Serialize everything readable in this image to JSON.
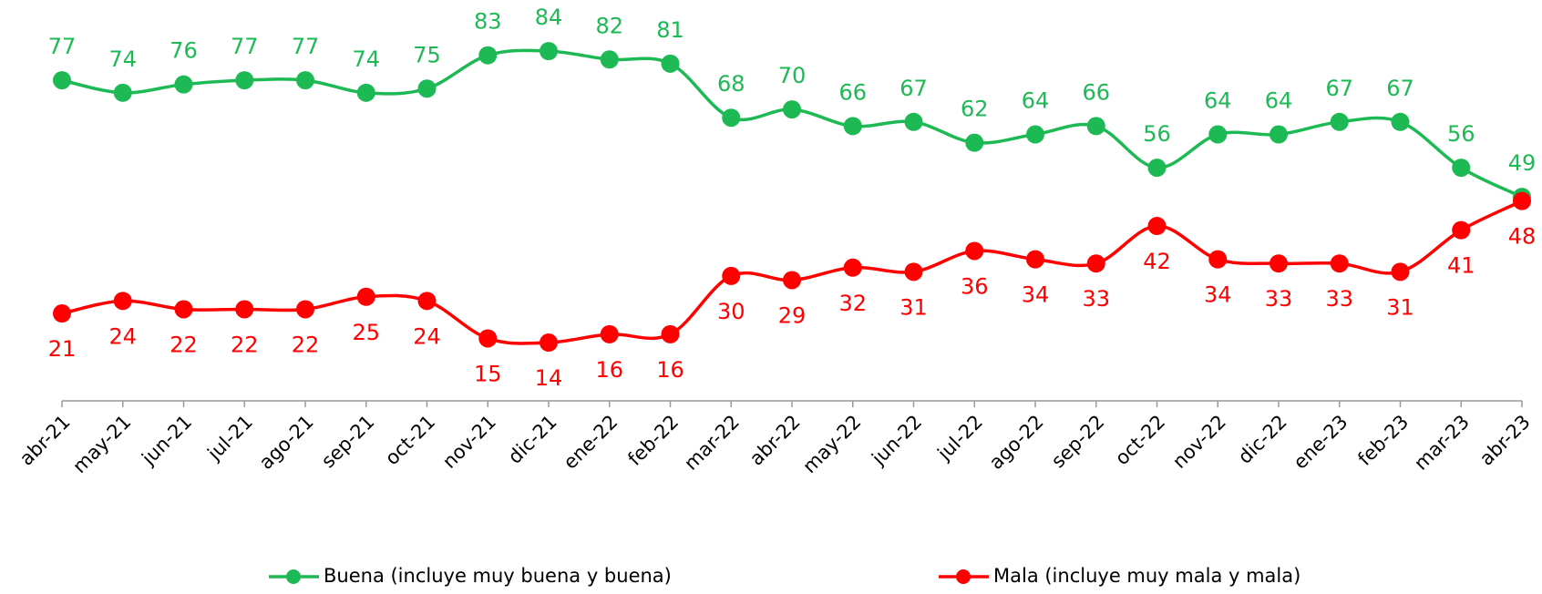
{
  "chart_data": {
    "type": "line",
    "categories": [
      "abr-21",
      "may-21",
      "jun-21",
      "jul-21",
      "ago-21",
      "sep-21",
      "oct-21",
      "nov-21",
      "dic-21",
      "ene-22",
      "feb-22",
      "mar-22",
      "abr-22",
      "may-22",
      "jun-22",
      "jul-22",
      "ago-22",
      "sep-22",
      "oct-22",
      "nov-22",
      "dic-22",
      "ene-23",
      "feb-23",
      "mar-23",
      "abr-23"
    ],
    "series": [
      {
        "name": "Buena (incluye muy buena y buena)",
        "color": "#1db954",
        "values": [
          77,
          74,
          76,
          77,
          77,
          74,
          75,
          83,
          84,
          82,
          81,
          68,
          70,
          66,
          67,
          62,
          64,
          66,
          56,
          64,
          64,
          67,
          67,
          56,
          49
        ]
      },
      {
        "name": "Mala (incluye muy mala y mala)",
        "color": "#ff0000",
        "values": [
          21,
          24,
          22,
          22,
          22,
          25,
          24,
          15,
          14,
          16,
          16,
          30,
          29,
          32,
          31,
          36,
          34,
          33,
          42,
          34,
          33,
          33,
          31,
          41,
          48
        ]
      }
    ]
  }
}
